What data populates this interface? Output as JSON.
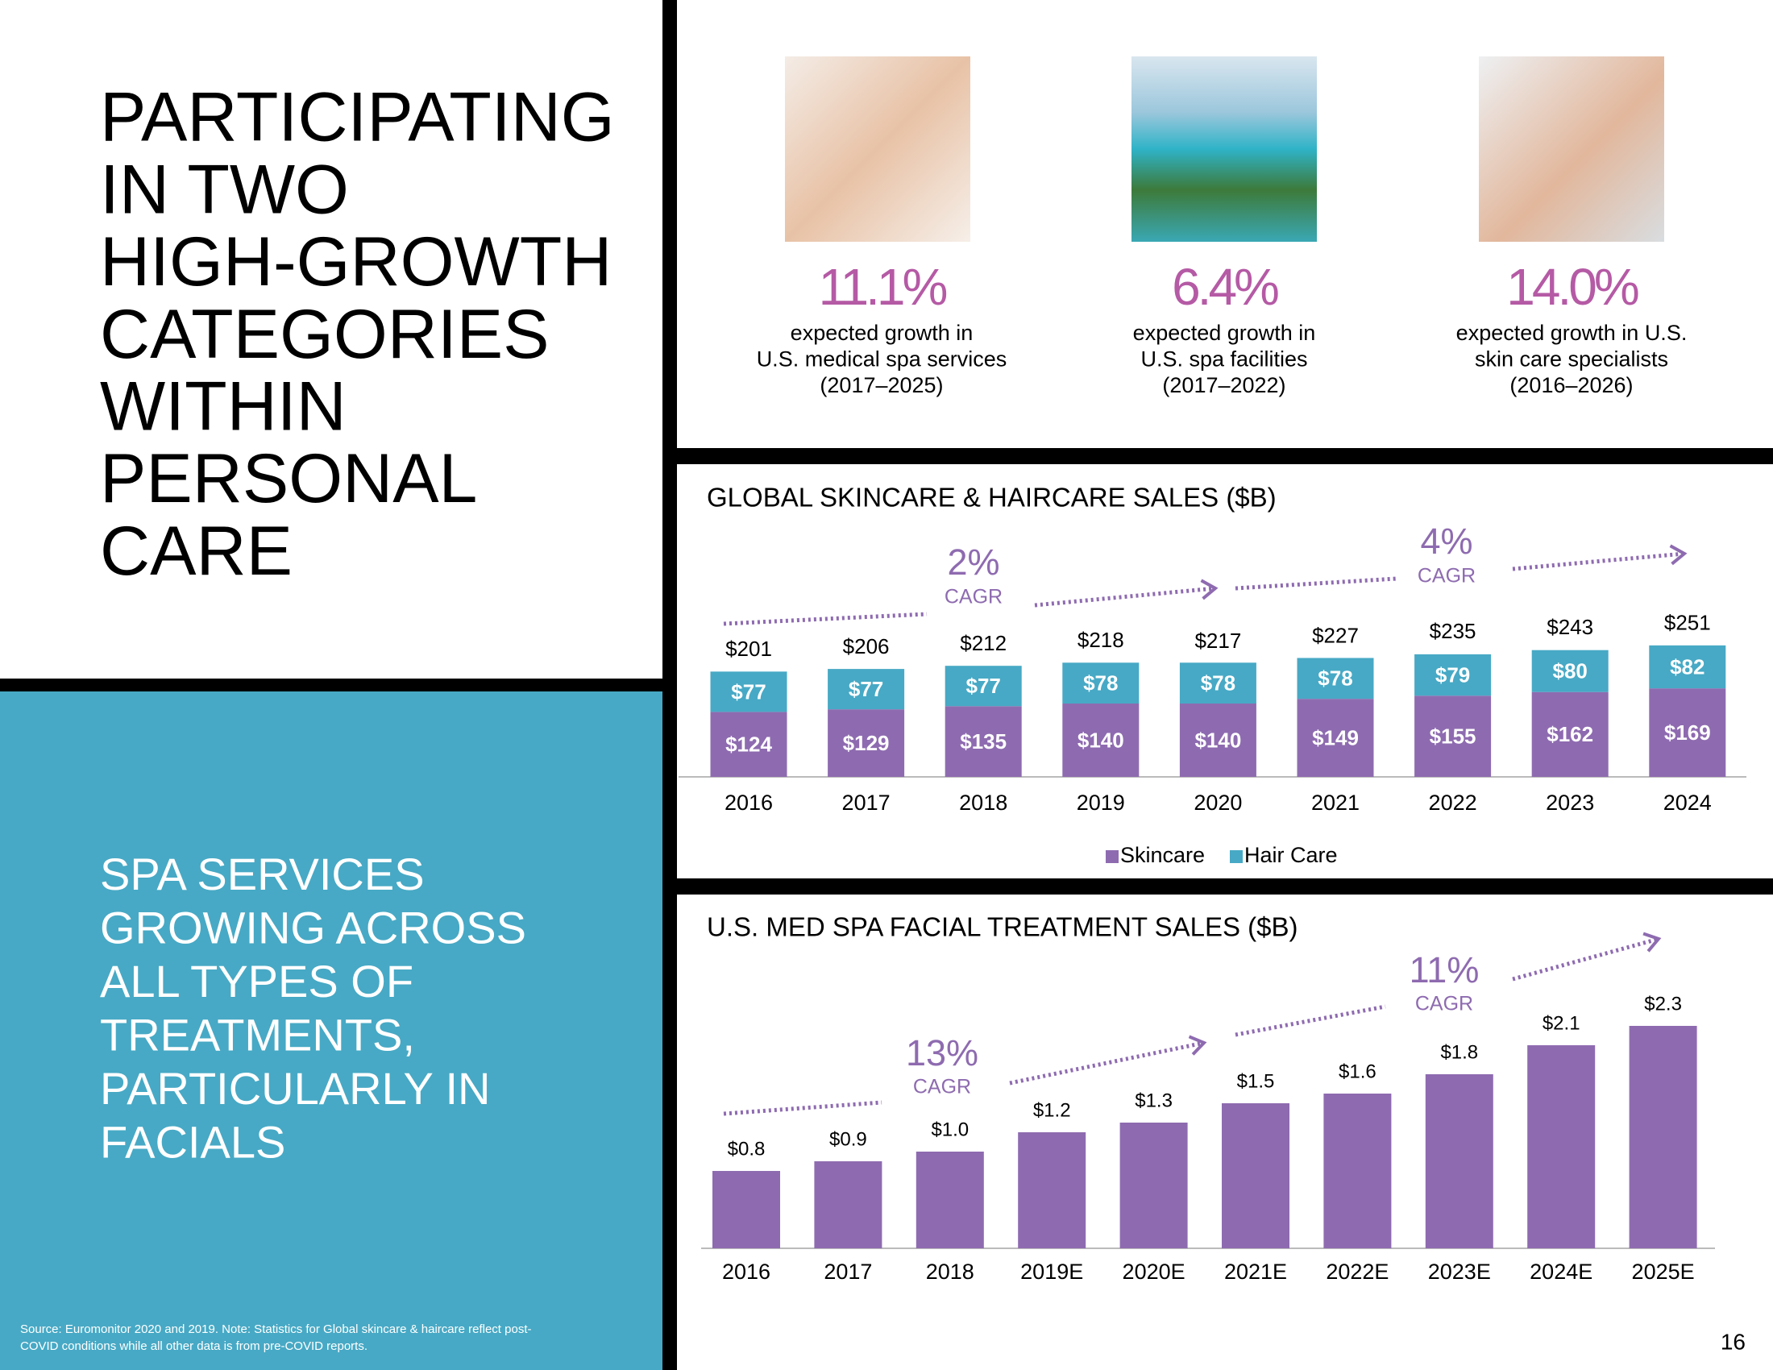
{
  "title_lines": [
    "PARTICIPATING",
    "IN TWO",
    "HIGH-GROWTH",
    "CATEGORIES",
    "WITHIN",
    "PERSONAL",
    "CARE"
  ],
  "subtitle_lines": [
    "SPA SERVICES",
    "GROWING ACROSS",
    "ALL TYPES OF",
    "TREATMENTS,",
    "PARTICULARLY IN",
    "FACIALS"
  ],
  "source_lines": [
    "Source: Euromonitor 2020 and 2019. Note: Statistics for Global skincare & haircare reflect post-",
    "COVID conditions while all other data is from pre-COVID reports."
  ],
  "page_number": "16",
  "stats": [
    {
      "value": "11.1%",
      "description": [
        "expected growth in",
        "U.S. medical spa services",
        "(2017–2025)"
      ]
    },
    {
      "value": "6.4%",
      "description": [
        "expected growth in",
        "U.S. spa facilities",
        "(2017–2022)"
      ]
    },
    {
      "value": "14.0%",
      "description": [
        "expected growth in U.S.",
        "skin care specialists",
        "(2016–2026)"
      ]
    }
  ],
  "chart_data": [
    {
      "type": "bar",
      "stacked": true,
      "title": "GLOBAL SKINCARE & HAIRCARE SALES ($B)",
      "categories": [
        "2016",
        "2017",
        "2018",
        "2019",
        "2020",
        "2021",
        "2022",
        "2023",
        "2024"
      ],
      "series": [
        {
          "name": "Skincare",
          "color": "#8e6bb0",
          "values": [
            124,
            129,
            135,
            140,
            140,
            149,
            155,
            162,
            169
          ],
          "value_labels": [
            "$124",
            "$129",
            "$135",
            "$140",
            "$140",
            "$149",
            "$155",
            "$162",
            "$169"
          ]
        },
        {
          "name": "Hair Care",
          "color": "#47a9c5",
          "values": [
            77,
            77,
            77,
            78,
            78,
            78,
            79,
            80,
            82
          ],
          "value_labels": [
            "$77",
            "$77",
            "$77",
            "$78",
            "$78",
            "$78",
            "$79",
            "$80",
            "$82"
          ]
        }
      ],
      "totals": [
        201,
        206,
        212,
        218,
        217,
        227,
        235,
        243,
        251
      ],
      "total_labels": [
        "$201",
        "$206",
        "$212",
        "$218",
        "$217",
        "$227",
        "$235",
        "$243",
        "$251"
      ],
      "annotations": [
        {
          "text": "2%",
          "label": "CAGR"
        },
        {
          "text": "4%",
          "label": "CAGR"
        }
      ],
      "legend": "bottom"
    },
    {
      "type": "bar",
      "title": "U.S. MED SPA FACIAL TREATMENT SALES ($B)",
      "categories": [
        "2016",
        "2017",
        "2018",
        "2019E",
        "2020E",
        "2021E",
        "2022E",
        "2023E",
        "2024E",
        "2025E"
      ],
      "color": "#8e6bb0",
      "values": [
        0.8,
        0.9,
        1.0,
        1.2,
        1.3,
        1.5,
        1.6,
        1.8,
        2.1,
        2.3
      ],
      "value_labels": [
        "$0.8",
        "$0.9",
        "$1.0",
        "$1.2",
        "$1.3",
        "$1.5",
        "$1.6",
        "$1.8",
        "$2.1",
        "$2.3"
      ],
      "annotations": [
        {
          "text": "13%",
          "label": "CAGR"
        },
        {
          "text": "11%",
          "label": "CAGR"
        }
      ]
    }
  ]
}
